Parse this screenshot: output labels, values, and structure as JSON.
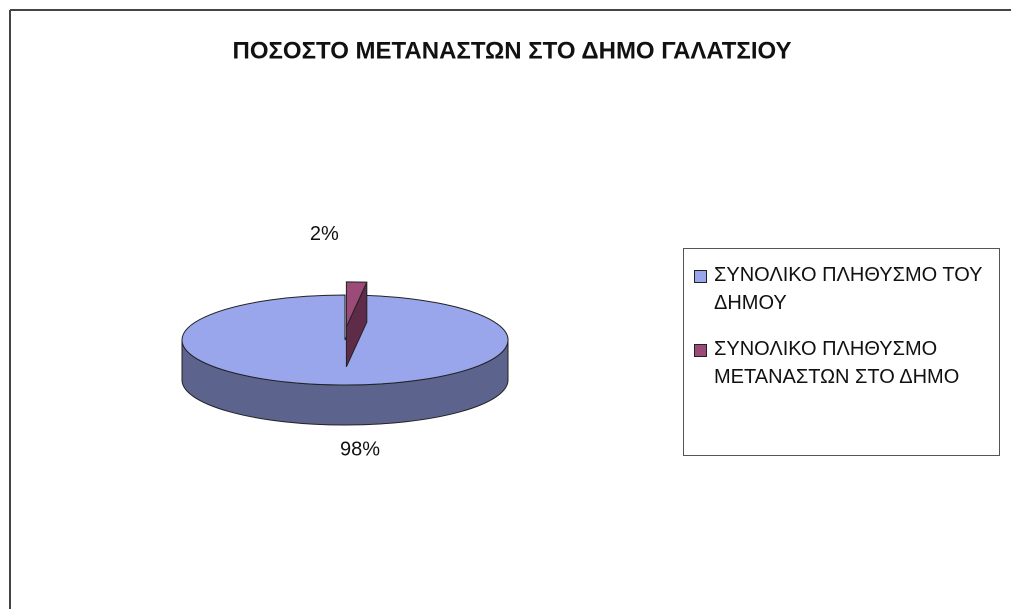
{
  "chart_data": {
    "type": "pie",
    "title": "ΠΟΣΟΣΤΟ ΜΕΤΑΝΑΣΤΩΝ ΣΤΟ ΔΗΜΟ ΓΑΛΑΤΣΙΟΥ",
    "categories": [
      "ΣΥΝΟΛΙΚΟ ΠΛΗΘΥΣΜΟ ΤΟΥ ΔΗΜΟΥ",
      "ΣΥΝΟΛΙΚΟ ΠΛΗΘΥΣΜΟ ΜΕΤΑΝΑΣΤΩΝ ΣΤΟ ΔΗΜΟ"
    ],
    "values": [
      98,
      2
    ],
    "value_labels": [
      "98%",
      "2%"
    ],
    "colors": [
      "#9aa6ec",
      "#9c4a78"
    ],
    "legend": "right"
  }
}
